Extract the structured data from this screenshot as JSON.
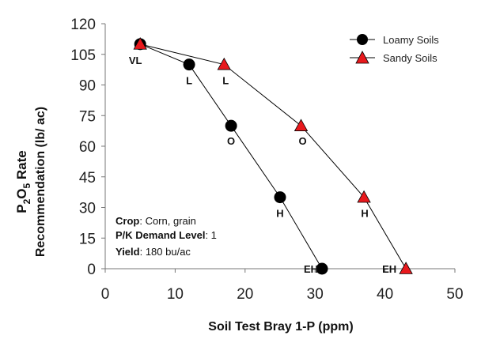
{
  "chart_data": {
    "type": "line",
    "xlabel": "Soil Test Bray 1-P (ppm)",
    "ylabel_line1_prefix": "P",
    "ylabel_line1_sub1": "2",
    "ylabel_line1_mid": "O",
    "ylabel_line1_sub2": "5",
    "ylabel_line1_suffix": " Rate",
    "ylabel_line2": "Recommendation (lb/ ac)",
    "xlim": [
      0,
      50
    ],
    "ylim": [
      0,
      120
    ],
    "xticks": [
      0,
      10,
      20,
      30,
      40,
      50
    ],
    "yticks": [
      0,
      15,
      30,
      45,
      60,
      75,
      90,
      105,
      120
    ],
    "grid": false,
    "legend_position": "top-right",
    "series": [
      {
        "name": "Loamy Soils",
        "marker": "circle",
        "color": "#000000",
        "points": [
          {
            "x": 5,
            "y": 110,
            "label": "VL"
          },
          {
            "x": 12,
            "y": 100,
            "label": "L"
          },
          {
            "x": 18,
            "y": 70,
            "label": "O"
          },
          {
            "x": 25,
            "y": 35,
            "label": "H"
          },
          {
            "x": 31,
            "y": 0,
            "label": "EH"
          }
        ]
      },
      {
        "name": "Sandy Soils",
        "marker": "triangle",
        "color": "#e8191d",
        "points": [
          {
            "x": 5,
            "y": 110,
            "label": ""
          },
          {
            "x": 17,
            "y": 100,
            "label": "L"
          },
          {
            "x": 28,
            "y": 70,
            "label": "O"
          },
          {
            "x": 37,
            "y": 35,
            "label": "H"
          },
          {
            "x": 43,
            "y": 0,
            "label": "EH"
          }
        ]
      }
    ],
    "info": [
      {
        "key": "Crop",
        "value": ": Corn, grain"
      },
      {
        "key": "P/K Demand Level",
        "value": ": 1"
      },
      {
        "key": "Yield",
        "value": ": 180 bu/ac"
      }
    ]
  }
}
